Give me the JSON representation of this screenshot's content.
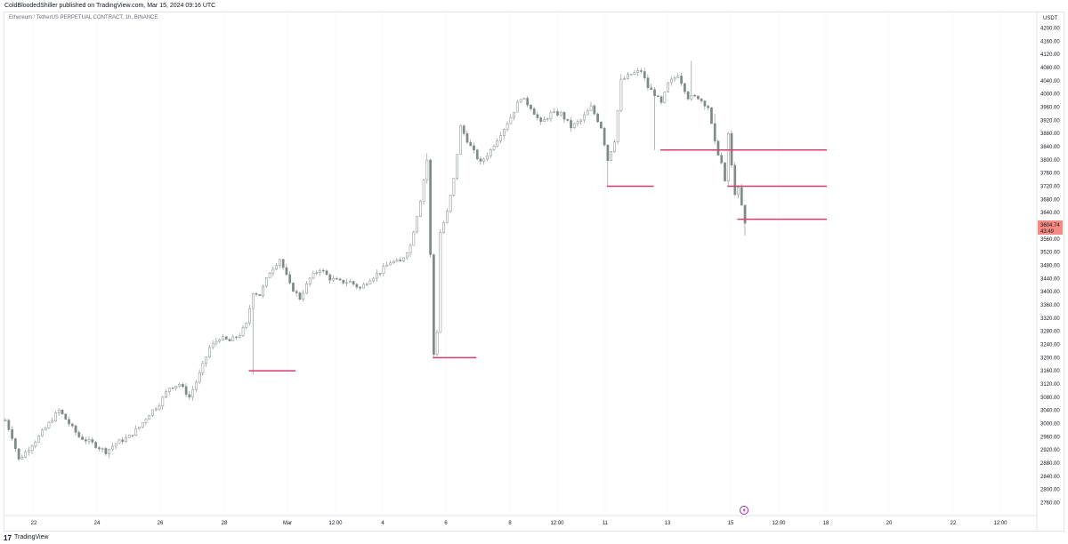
{
  "header": {
    "publish_line": "ColdBloodedShiller published on TradingView.com, Mar 15, 2024 09:16 UTC",
    "symbol_line": "Ethereum / TetherUS PERPETUAL CONTRACT, 1h, BINANCE"
  },
  "footer": {
    "logo_mark": "17",
    "logo_text": "TradingView"
  },
  "colors": {
    "candle": "#7f8a85",
    "level_line": "#d23f6f",
    "price_badge": "#f28b82",
    "grid": "#f0f3fa"
  },
  "icons": {
    "replay": "lightning-circle-icon"
  },
  "chart_data": {
    "type": "candlestick",
    "currency_label": "USDT",
    "y_ticks": [
      4200,
      4160,
      4120,
      4080,
      4040,
      4000,
      3960,
      3920,
      3880,
      3840,
      3800,
      3760,
      3720,
      3680,
      3640,
      3600,
      3560,
      3520,
      3480,
      3440,
      3400,
      3360,
      3320,
      3280,
      3240,
      3200,
      3160,
      3120,
      3080,
      3040,
      3000,
      2960,
      2920,
      2880,
      2840,
      2800,
      2760
    ],
    "ylim": [
      2740,
      4220
    ],
    "x_ticks": [
      "22",
      "24",
      "26",
      "28",
      "Mar",
      "12:00",
      "4",
      "6",
      "8",
      "12:00",
      "11",
      "13",
      "15",
      "12:00",
      "18",
      "20",
      "22",
      "12:00"
    ],
    "last_price": "3604.74",
    "countdown": "43:49",
    "price_path": [
      [
        0,
        3010
      ],
      [
        2,
        2960
      ],
      [
        4,
        2890
      ],
      [
        7,
        2925
      ],
      [
        10,
        2960
      ],
      [
        13,
        3000
      ],
      [
        16,
        3040
      ],
      [
        19,
        3000
      ],
      [
        22,
        2960
      ],
      [
        26,
        2940
      ],
      [
        30,
        2915
      ],
      [
        33,
        2940
      ],
      [
        37,
        2960
      ],
      [
        40,
        2990
      ],
      [
        43,
        3030
      ],
      [
        46,
        3060
      ],
      [
        49,
        3110
      ],
      [
        52,
        3120
      ],
      [
        55,
        3080
      ],
      [
        58,
        3150
      ],
      [
        61,
        3230
      ],
      [
        64,
        3260
      ],
      [
        67,
        3250
      ],
      [
        70,
        3270
      ],
      [
        72,
        3300
      ],
      [
        74,
        3400
      ],
      [
        76,
        3390
      ],
      [
        79,
        3460
      ],
      [
        82,
        3500
      ],
      [
        85,
        3420
      ],
      [
        88,
        3380
      ],
      [
        91,
        3440
      ],
      [
        94,
        3470
      ],
      [
        97,
        3440
      ],
      [
        100,
        3430
      ],
      [
        103,
        3430
      ],
      [
        106,
        3410
      ],
      [
        109,
        3440
      ],
      [
        112,
        3460
      ],
      [
        115,
        3490
      ],
      [
        118,
        3490
      ],
      [
        121,
        3540
      ],
      [
        124,
        3680
      ],
      [
        126,
        3800
      ],
      [
        127,
        3510
      ],
      [
        128,
        3210
      ],
      [
        129,
        3280
      ],
      [
        130,
        3580
      ],
      [
        132,
        3640
      ],
      [
        134,
        3740
      ],
      [
        136,
        3900
      ],
      [
        139,
        3840
      ],
      [
        142,
        3790
      ],
      [
        145,
        3830
      ],
      [
        148,
        3880
      ],
      [
        151,
        3930
      ],
      [
        154,
        3990
      ],
      [
        157,
        3960
      ],
      [
        160,
        3910
      ],
      [
        163,
        3940
      ],
      [
        166,
        3940
      ],
      [
        169,
        3900
      ],
      [
        172,
        3920
      ],
      [
        175,
        3960
      ],
      [
        178,
        3900
      ],
      [
        180,
        3800
      ],
      [
        182,
        3860
      ],
      [
        184,
        4040
      ],
      [
        187,
        4060
      ],
      [
        190,
        4070
      ],
      [
        192,
        4020
      ],
      [
        194,
        4000
      ],
      [
        196,
        3970
      ],
      [
        198,
        4030
      ],
      [
        201,
        4060
      ],
      [
        204,
        3990
      ],
      [
        207,
        3990
      ],
      [
        210,
        3960
      ],
      [
        212,
        3850
      ],
      [
        214,
        3790
      ],
      [
        215,
        3730
      ],
      [
        216,
        3880
      ],
      [
        217,
        3780
      ],
      [
        218,
        3700
      ],
      [
        219,
        3710
      ],
      [
        220,
        3660
      ],
      [
        221,
        3604
      ]
    ],
    "candle_hours_total": 221,
    "levels": [
      {
        "price": 3160,
        "from_hour": 73,
        "to_hour": 87
      },
      {
        "price": 3200,
        "from_hour": 128,
        "to_hour": 141
      },
      {
        "price": 3720,
        "from_hour": 180,
        "to_hour": 194
      },
      {
        "price": 3830,
        "from_hour": 196,
        "to_hour": 250
      },
      {
        "price": 3720,
        "from_hour": 216,
        "to_hour": 250
      },
      {
        "price": 3620,
        "from_hour": 219,
        "to_hour": 250
      }
    ]
  }
}
